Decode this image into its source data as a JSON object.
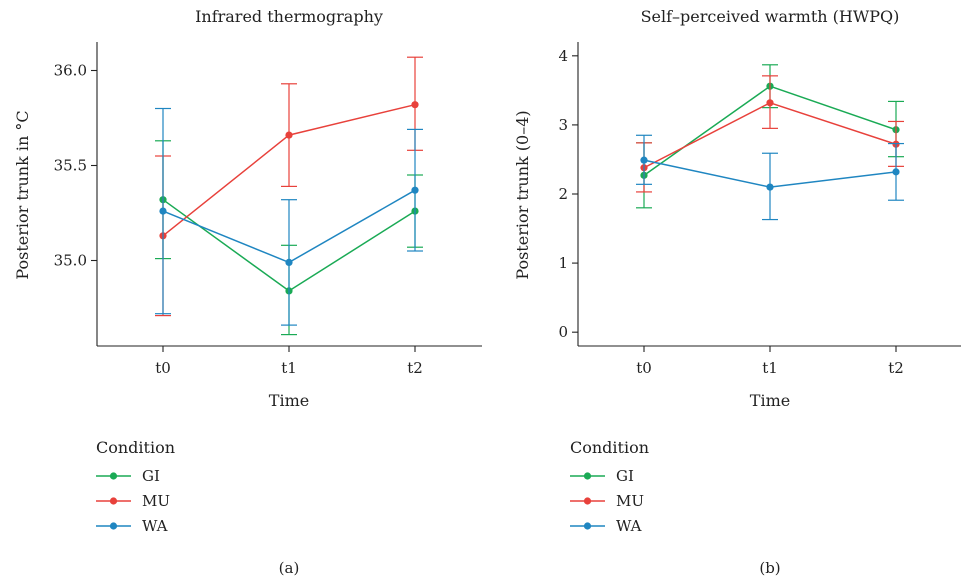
{
  "chart_data": [
    {
      "type": "line",
      "title": "Infrared thermography",
      "xlabel": "Time",
      "ylabel": "Posterior trunk in °C",
      "categories": [
        "t0",
        "t1",
        "t2"
      ],
      "ylim": [
        34.55,
        36.15
      ],
      "yticks": [
        35.0,
        35.5,
        36.0
      ],
      "ytick_labels": [
        "35.0",
        "35.5",
        "36.0"
      ],
      "error_bars": true,
      "grid": false,
      "legend_title": "Condition",
      "legend_position": "bottom-left",
      "panel_label": "(a)",
      "series": [
        {
          "name": "GI",
          "color": "#1aaa55",
          "values": [
            35.32,
            34.84,
            35.26
          ],
          "lower": [
            35.01,
            34.61,
            35.07
          ],
          "upper": [
            35.63,
            35.08,
            35.45
          ]
        },
        {
          "name": "MU",
          "color": "#e8413b",
          "values": [
            35.13,
            35.66,
            35.82
          ],
          "lower": [
            34.71,
            35.39,
            35.58
          ],
          "upper": [
            35.55,
            35.93,
            36.07
          ]
        },
        {
          "name": "WA",
          "color": "#1f86c1",
          "values": [
            35.26,
            34.99,
            35.37
          ],
          "lower": [
            34.72,
            34.66,
            35.05
          ],
          "upper": [
            35.8,
            35.32,
            35.69
          ]
        }
      ]
    },
    {
      "type": "line",
      "title": "Self–perceived warmth (HWPQ)",
      "xlabel": "Time",
      "ylabel": "Posterior trunk (0–4)",
      "categories": [
        "t0",
        "t1",
        "t2"
      ],
      "ylim": [
        -0.2,
        4.2
      ],
      "yticks": [
        0,
        1,
        2,
        3,
        4
      ],
      "ytick_labels": [
        "0",
        "1",
        "2",
        "3",
        "4"
      ],
      "error_bars": true,
      "grid": false,
      "legend_title": "Condition",
      "legend_position": "bottom-left",
      "panel_label": "(b)",
      "series": [
        {
          "name": "GI",
          "color": "#1aaa55",
          "values": [
            2.27,
            3.56,
            2.93
          ],
          "lower": [
            1.8,
            3.25,
            2.54
          ],
          "upper": [
            2.74,
            3.87,
            3.34
          ]
        },
        {
          "name": "MU",
          "color": "#e8413b",
          "values": [
            2.38,
            3.32,
            2.72
          ],
          "lower": [
            2.03,
            2.95,
            2.4
          ],
          "upper": [
            2.74,
            3.71,
            3.05
          ]
        },
        {
          "name": "WA",
          "color": "#1f86c1",
          "values": [
            2.49,
            2.1,
            2.32
          ],
          "lower": [
            2.14,
            1.63,
            1.91
          ],
          "upper": [
            2.85,
            2.59,
            2.73
          ]
        }
      ]
    }
  ]
}
